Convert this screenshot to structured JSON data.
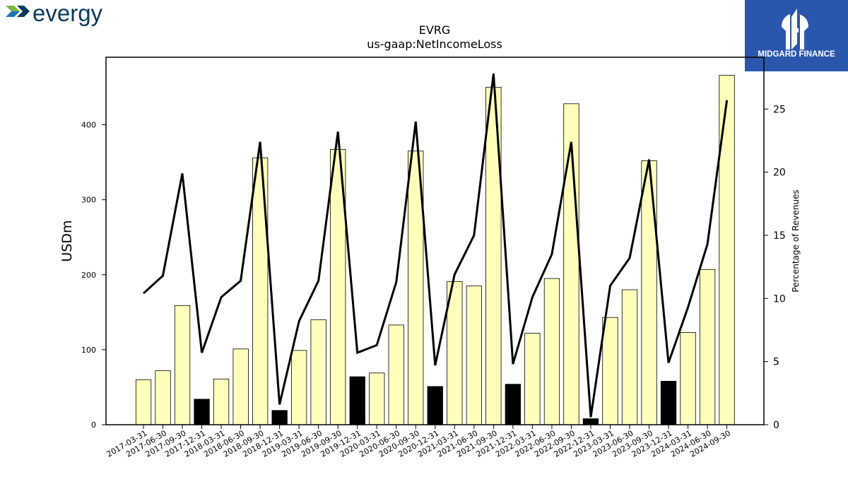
{
  "branding": {
    "company_logo_text": "evergy",
    "publisher_logo_text": "MIDGARD FINANCE"
  },
  "chart_data": {
    "type": "bar",
    "title": "EVRG",
    "subtitle": "us-gaap:NetIncomeLoss",
    "ylabel": "USDm",
    "y2label": "Percentage of Revenues",
    "ylim": [
      0,
      490
    ],
    "y2lim": [
      0,
      29.1
    ],
    "yticks": [
      0,
      100,
      200,
      300,
      400
    ],
    "y2ticks": [
      0,
      5,
      10,
      15,
      20,
      25
    ],
    "categories": [
      "2017-03-31",
      "2017-06-30",
      "2017-09-30",
      "2017-12-31",
      "2018-03-31",
      "2018-06-30",
      "2018-09-30",
      "2018-12-31",
      "2019-03-31",
      "2019-06-30",
      "2019-09-30",
      "2019-12-31",
      "2020-03-31",
      "2020-06-30",
      "2020-09-30",
      "2020-12-31",
      "2021-03-31",
      "2021-06-30",
      "2021-09-30",
      "2021-12-31",
      "2022-03-31",
      "2022-06-30",
      "2022-09-30",
      "2022-12-31",
      "2023-03-31",
      "2023-06-30",
      "2023-09-30",
      "2023-12-31",
      "2024-03-31",
      "2024-06-30",
      "2024-09-30"
    ],
    "series": [
      {
        "name": "",
        "kind": "bar",
        "values": [
          60,
          72,
          159,
          34,
          61,
          101,
          356,
          19,
          99,
          140,
          367,
          64,
          69,
          133,
          365,
          51,
          191,
          185,
          450,
          54,
          122,
          195,
          428,
          8,
          143,
          180,
          352,
          58,
          123,
          207,
          466
        ],
        "highlight_quarter": "12-31",
        "color": "#ffffbb",
        "highlight_color": "#000000"
      },
      {
        "name": "",
        "kind": "line",
        "axis": "y2",
        "values": [
          10.4,
          11.8,
          19.9,
          5.7,
          10.1,
          11.4,
          22.4,
          1.6,
          8.2,
          11.4,
          23.2,
          5.7,
          6.3,
          11.3,
          24.0,
          4.7,
          11.9,
          15.0,
          27.8,
          4.8,
          10.1,
          13.5,
          22.4,
          0.6,
          11.0,
          13.2,
          21.0,
          4.9,
          9.3,
          14.3,
          25.7
        ],
        "color": "#000000"
      }
    ],
    "grid": false,
    "legend": "none"
  }
}
